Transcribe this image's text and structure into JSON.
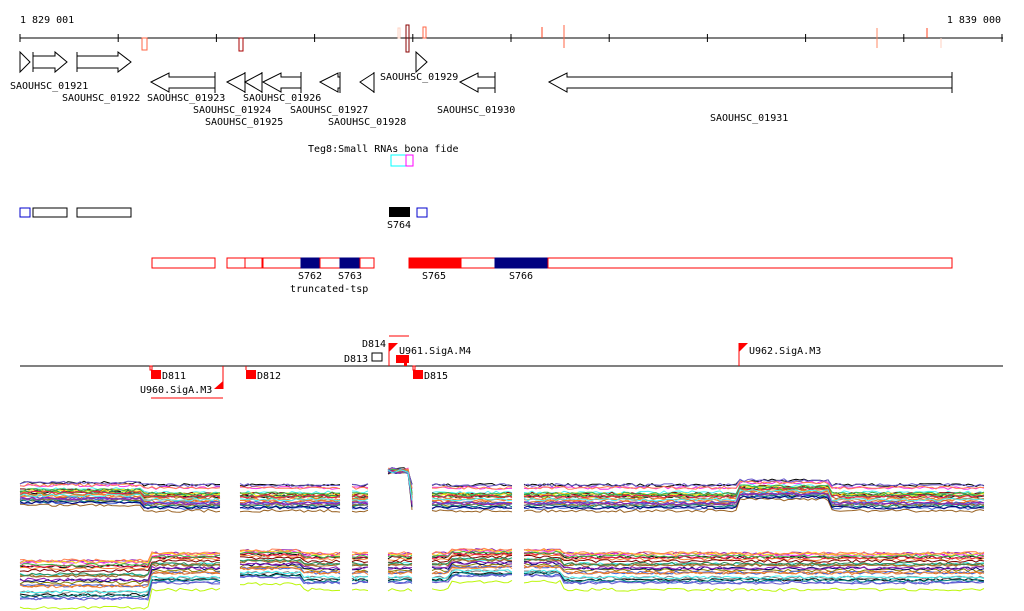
{
  "ruler": {
    "start": "1 829 001",
    "end": "1 839 000"
  },
  "genes": [
    "SAOUHSC_01921",
    "SAOUHSC_01922",
    "SAOUHSC_01923",
    "SAOUHSC_01924",
    "SAOUHSC_01925",
    "SAOUHSC_01926",
    "SAOUHSC_01927",
    "SAOUHSC_01928",
    "SAOUHSC_01929",
    "SAOUHSC_01930",
    "SAOUHSC_01931"
  ],
  "teg8_label": "Teg8:Small RNAs bona fide",
  "srna": {
    "s764": "S764"
  },
  "transcripts": {
    "s762": "S762",
    "s763": "S763",
    "truncated": "truncated-tsp",
    "s765": "S765",
    "s766": "S766"
  },
  "promoters": {
    "d811": "D811",
    "d812": "D812",
    "d813": "D813",
    "d814": "D814",
    "d815": "D815",
    "u960": "U960.SigA.M3",
    "u961": "U961.SigA.M4",
    "u962": "U962.SigA.M3"
  },
  "colors": {
    "red": "#ff0000",
    "navy": "#000080",
    "cyan": "#00ffff",
    "magenta": "#ff00ff"
  }
}
